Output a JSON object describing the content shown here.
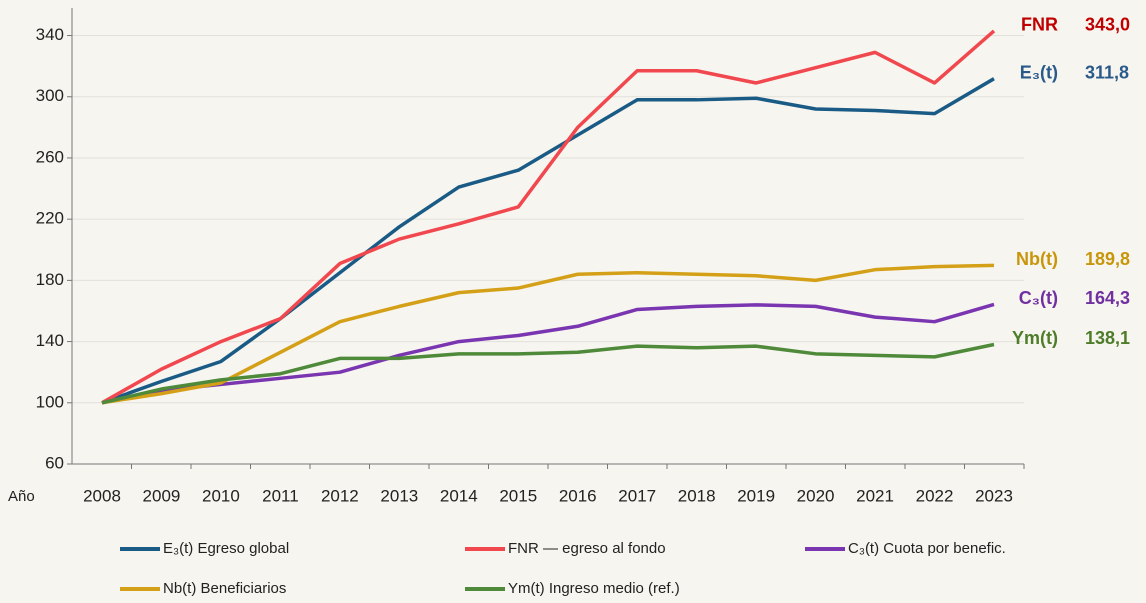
{
  "chart_data": {
    "type": "line",
    "x_label": "Año",
    "categories": [
      "2008",
      "2009",
      "2010",
      "2011",
      "2012",
      "2013",
      "2014",
      "2015",
      "2016",
      "2017",
      "2018",
      "2019",
      "2020",
      "2021",
      "2022",
      "2023"
    ],
    "ylim": [
      60,
      358
    ],
    "yticks": [
      60,
      100,
      140,
      180,
      220,
      260,
      300,
      340
    ],
    "grid": true,
    "series": [
      {
        "name": "E₃(t) Egreso global",
        "short": "E₃(t)",
        "color": "#1a5b86",
        "label_color": "#2a5a8a",
        "values": [
          100,
          114,
          127,
          155,
          185,
          215,
          241,
          252,
          275,
          298,
          298,
          299,
          292,
          291,
          289,
          311.8
        ],
        "value_labels": [
          null,
          null,
          null,
          null,
          null,
          null,
          null,
          null,
          null,
          null,
          null,
          null,
          null,
          null,
          null,
          "311,8"
        ]
      },
      {
        "name": "FNR — egreso al fondo",
        "short": "FNR",
        "color": "#f0484e",
        "label_color": "#c00000",
        "values": [
          100,
          122,
          140,
          155,
          191,
          207,
          217,
          228,
          280,
          317,
          317,
          309,
          319,
          329,
          309,
          343.0
        ],
        "value_labels": [
          null,
          null,
          null,
          null,
          null,
          null,
          null,
          null,
          null,
          null,
          null,
          null,
          null,
          null,
          null,
          "343,0"
        ]
      },
      {
        "name": "C₃(t) Cuota por benefic.",
        "short": "C₃(t)",
        "color": "#7a35b0",
        "label_color": "#7030a0",
        "values": [
          100,
          108,
          112,
          116,
          120,
          131,
          140,
          144,
          150,
          161,
          163,
          164,
          163,
          156,
          153,
          164.3
        ],
        "value_labels": [
          null,
          null,
          null,
          null,
          null,
          null,
          null,
          null,
          null,
          null,
          null,
          null,
          null,
          null,
          null,
          "164,3"
        ]
      },
      {
        "name": "Nb(t) Beneficiarios",
        "short": "Nb(t)",
        "color": "#d4a017",
        "label_color": "#c8960a",
        "values": [
          100,
          106,
          113,
          133,
          153,
          163,
          172,
          175,
          184,
          185,
          184,
          183,
          180,
          187,
          189,
          189.8
        ],
        "value_labels": [
          null,
          null,
          null,
          null,
          null,
          null,
          null,
          null,
          null,
          null,
          null,
          null,
          null,
          null,
          null,
          "189,8"
        ]
      },
      {
        "name": "Ym(t) Ingreso medio (ref.)",
        "short": "Ym(t)",
        "color": "#4e8a3a",
        "label_color": "#4e7d2a",
        "values": [
          100,
          109,
          115,
          119,
          129,
          129,
          132,
          132,
          133,
          137,
          136,
          137,
          132,
          131,
          130,
          138.1
        ],
        "value_labels": [
          null,
          null,
          null,
          null,
          null,
          null,
          null,
          null,
          null,
          null,
          null,
          null,
          null,
          null,
          null,
          "138,1"
        ]
      }
    ]
  }
}
